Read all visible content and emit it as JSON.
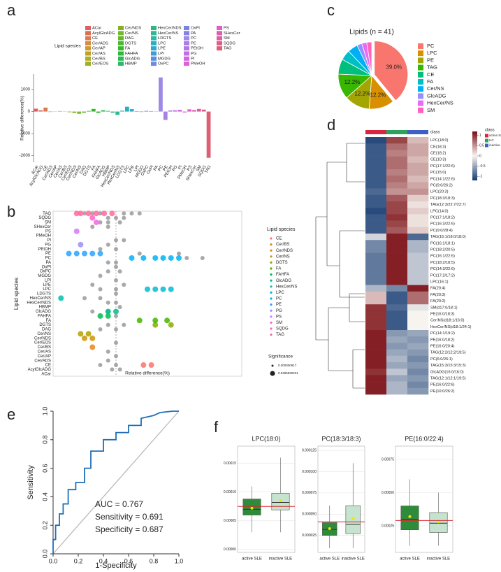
{
  "chart_data": [
    {
      "label": "a",
      "type": "bar",
      "ylabel": "Relative difference(%)",
      "legend_title": "Lipid species",
      "categories": [
        "ACar",
        "AcylGlcADG",
        "CE",
        "Cer/ADS",
        "Cer/AP",
        "Cer/AS",
        "Cer/BS",
        "Cer/EOS",
        "Cer/NDS",
        "Cer/NS",
        "DAG",
        "DGTS",
        "FA",
        "FAHFA",
        "GlcADG",
        "HBMP",
        "HexCer/NDS",
        "HexCer/NS",
        "LDGTS",
        "LPC",
        "LPE",
        "LPI",
        "MGDG",
        "OxPC",
        "OxPI",
        "PA",
        "PC",
        "PE",
        "PEtOH",
        "PG",
        "PI",
        "PMeOH",
        "PS",
        "SHexCer",
        "SM",
        "SQDG",
        "TAG"
      ],
      "values": [
        130,
        60,
        180,
        -20,
        -10,
        20,
        10,
        -30,
        -60,
        -100,
        -50,
        30,
        120,
        -60,
        60,
        30,
        -50,
        -150,
        40,
        220,
        110,
        20,
        -20,
        30,
        20,
        10,
        1550,
        -380,
        50,
        60,
        80,
        -40,
        100,
        70,
        120,
        90,
        -2100
      ],
      "colors": [
        "hsl(0,65%,62%)",
        "hsl(10,65%,60%)",
        "hsl(19,65%,58%)",
        "hsl(29,65%,55%)",
        "hsl(39,65%,50%)",
        "hsl(49,65%,45%)",
        "hsl(58,65%,42%)",
        "hsl(68,65%,42%)",
        "hsl(78,65%,42%)",
        "hsl(88,60%,45%)",
        "hsl(97,60%,45%)",
        "hsl(107,60%,45%)",
        "hsl(117,60%,45%)",
        "hsl(126,60%,45%)",
        "hsl(136,60%,45%)",
        "hsl(146,60%,45%)",
        "hsl(156,60%,45%)",
        "hsl(165,60%,45%)",
        "hsl(175,60%,45%)",
        "hsl(185,65%,45%)",
        "hsl(195,65%,50%)",
        "hsl(204,65%,55%)",
        "hsl(214,65%,60%)",
        "hsl(224,65%,65%)",
        "hsl(234,65%,68%)",
        "hsl(243,65%,70%)",
        "hsl(253,65%,72%)",
        "hsl(263,65%,70%)",
        "hsl(272,65%,68%)",
        "hsl(282,65%,66%)",
        "hsl(292,65%,64%)",
        "hsl(302,65%,62%)",
        "hsl(311,65%,62%)",
        "hsl(321,65%,62%)",
        "hsl(331,65%,62%)",
        "hsl(341,65%,62%)",
        "hsl(350,65%,62%)"
      ],
      "ylim": [
        -2300,
        1700
      ],
      "yticks": [
        -2000,
        -1000,
        0,
        1000
      ]
    },
    {
      "label": "b",
      "type": "strip",
      "ylabel": "Lipid species",
      "xlabel": "Relative difference(%)",
      "legend_title": "Lipid species",
      "size_title": "Significance",
      "size_labels": [
        "0.000000917",
        "0.0495820231"
      ],
      "categories": [
        "TAG",
        "SQDG",
        "SM",
        "SHexCer",
        "PS",
        "PMeOH",
        "PI",
        "PG",
        "PEtOH",
        "PE",
        "PC",
        "PA",
        "OxPI",
        "OxPC",
        "MGDG",
        "LPI",
        "LPE",
        "LPC",
        "LDGTS",
        "HexCer/NS",
        "HexCer/NDS",
        "HBMP",
        "GlcADG",
        "FAHFA",
        "FA",
        "DGTS",
        "DAG",
        "Cer/NS",
        "Cer/NDS",
        "Cer/EOS",
        "Cer/BS",
        "Cer/AS",
        "Cer/AP",
        "Cer/ADS",
        "CE",
        "AcylGlcADG",
        "ACar"
      ],
      "xlim": [
        -0.8,
        1.6
      ],
      "refline": 0,
      "series": [
        {
          "color": "#9a9a9a",
          "x": [
            -0.4,
            -0.3,
            -0.2,
            0.1,
            0.2,
            0.3,
            -0.1,
            0,
            0.1,
            -0.2,
            -0.1,
            0.05,
            -0.3,
            -0.1,
            0,
            0.1,
            -0.1,
            -0.2,
            0,
            0.3,
            0.8,
            0.9,
            1.1,
            -0.1,
            0,
            0,
            -0.1,
            0.05,
            -0.2,
            0,
            -0.3,
            0.1,
            -0.2,
            0,
            0,
            -0.4,
            -0.2,
            -0.1,
            0,
            0.05,
            -0.3,
            -0.1,
            0,
            -0.1,
            0.1,
            -0.2,
            0,
            0,
            -0.1,
            0,
            -0.1,
            -0.2,
            0,
            -0.05,
            0.05
          ],
          "y": [
            0,
            0,
            0,
            0,
            0,
            0,
            1,
            1,
            1,
            2,
            2,
            2,
            3,
            3,
            6,
            6,
            7,
            8,
            8,
            9,
            9,
            10,
            10,
            11,
            11,
            12,
            13,
            13,
            14,
            15,
            16,
            16,
            17,
            17,
            18,
            19,
            19,
            20,
            20,
            21,
            22,
            22,
            23,
            25,
            25,
            26,
            26,
            29,
            31,
            32,
            33,
            34,
            34,
            35,
            35
          ]
        },
        {
          "name": "CE",
          "color": "#F8766D",
          "x": [
            0.35,
            0.45
          ],
          "y": [
            34,
            34
          ]
        },
        {
          "name": "Cer/BS",
          "color": "#E7851E",
          "x": [
            -0.3
          ],
          "y": [
            30
          ]
        },
        {
          "name": "Cer/NDS",
          "color": "#D09400",
          "x": [
            -0.4,
            -0.3
          ],
          "y": [
            28,
            28
          ]
        },
        {
          "name": "Cer/NS",
          "color": "#B2A100",
          "x": [
            -0.45,
            -0.35
          ],
          "y": [
            27,
            27
          ]
        },
        {
          "name": "DGTS",
          "color": "#89AC00",
          "x": [
            0.5,
            0.7
          ],
          "y": [
            25,
            25
          ]
        },
        {
          "name": "FA",
          "color": "#45B500",
          "x": [
            0.3,
            0.5,
            0.65
          ],
          "y": [
            24,
            24,
            24
          ]
        },
        {
          "name": "FAHFA",
          "color": "#00BC51",
          "x": [
            -0.2,
            -0.1
          ],
          "y": [
            23,
            23
          ]
        },
        {
          "name": "GlcADG",
          "color": "#00C087",
          "x": [
            -0.1,
            0
          ],
          "y": [
            22,
            22
          ]
        },
        {
          "name": "HexCer/NS",
          "color": "#00C0B2",
          "x": [
            -0.7
          ],
          "y": [
            19
          ]
        },
        {
          "name": "LPC",
          "color": "#00BCD6",
          "x": [
            0.4,
            0.5,
            0.6,
            0.7
          ],
          "y": [
            17,
            17,
            17,
            17
          ]
        },
        {
          "name": "PC",
          "color": "#00B3F2",
          "x": [
            0.2,
            0.35,
            0.5,
            0.6,
            0.7,
            0.8
          ],
          "y": [
            10,
            10,
            10,
            10,
            10,
            10
          ]
        },
        {
          "name": "PE",
          "color": "#29A3FF",
          "x": [
            -0.6,
            -0.5,
            -0.4,
            -0.3,
            -0.2
          ],
          "y": [
            9,
            9,
            9,
            9,
            9
          ]
        },
        {
          "name": "PG",
          "color": "#9C8DFF",
          "x": [
            -0.45
          ],
          "y": [
            7
          ]
        },
        {
          "name": "PS",
          "color": "#D277FF",
          "x": [
            -0.5
          ],
          "y": [
            4
          ]
        },
        {
          "name": "SM",
          "color": "#F166E8",
          "x": [
            -0.25
          ],
          "y": [
            2
          ]
        },
        {
          "name": "SQDG",
          "color": "#FF61C7",
          "x": [
            -0.3
          ],
          "y": [
            1
          ]
        },
        {
          "name": "TAG",
          "color": "#FF689E",
          "x": [
            -0.5,
            -0.45,
            -0.35,
            -0.25,
            -0.15,
            -0.05
          ],
          "y": [
            0,
            0,
            0,
            0,
            0,
            0
          ]
        }
      ]
    },
    {
      "label": "c",
      "type": "pie",
      "title": "Lipids (n = 41)",
      "categories": [
        "PC",
        "LPC",
        "PE",
        "TAG",
        "CE",
        "FA",
        "Cer/NS",
        "GlcADG",
        "HexCer/NS",
        "SM"
      ],
      "values": [
        39.0,
        12.2,
        12.2,
        12.2,
        7.3,
        4.9,
        4.9,
        2.4,
        2.4,
        2.4
      ],
      "value_labels": [
        "39.0%",
        "12.2%",
        "12.2%",
        "12.2%",
        null,
        null,
        null,
        null,
        null,
        null
      ],
      "colors": [
        "#F8766D",
        "#D89000",
        "#A3A500",
        "#39B600",
        "#00BF7D",
        "#00BFC4",
        "#00B0F6",
        "#9590FF",
        "#E76BF3",
        "#FF62BC"
      ]
    },
    {
      "label": "d",
      "type": "heatmap",
      "annotation_label": "class",
      "legend_title": "class",
      "columns": [
        "active SLE",
        "HC",
        "inactive SLE"
      ],
      "column_colors": [
        "#d7263d",
        "#2ca25f",
        "#3f5fc4"
      ],
      "rows": [
        "LPC(18:0)",
        "CE(18:3)",
        "CE(18:2)",
        "CE(10:3)",
        "PC(17:1/22:6)",
        "PC(15:0)",
        "PC(14:1/22:6)",
        "PC(9:0/26:2)",
        "LPC(20:3)",
        "PC(18:3/18:3)",
        "TAG(12:3/22:7/22:7)",
        "LPC(14:0)",
        "PC(17:1/18:2)",
        "PC(16:3/22:6)",
        "PC(9:0/28:4)",
        "TAG(16:1/18:0/18:0)",
        "PC(16:1/18:1)",
        "PC(18:2/20:5)",
        "PC(16:1/22:6)",
        "PC(18:2/18:5)",
        "PC(14:3/22:6)",
        "PC(17:2/17:2)",
        "LPC(16:1)",
        "FA(20:4)",
        "FA(20:3)",
        "FA(20:2)",
        "SM(d17:0/18:1)",
        "PE(16:0/18:3)",
        "Cer/NS(d18:1/16:0)",
        "HexCer/NS(d18:1/24:1)",
        "PC(14:1/19:2)",
        "PE(16:0/18:2)",
        "PE(16:0/20:4)",
        "TAG(12:2/12:2/19:5)",
        "PC(6:0/26:1)",
        "TAG(15:3/15:3/15:3)",
        "GlcADG(16:0/16:0)",
        "TAG(12:1/12:1/19:5)",
        "PE(16:0/22:6)",
        "PE(10:0/26:2)"
      ],
      "values": [
        [
          -1.1,
          0.9,
          0.3
        ],
        [
          -1,
          0.7,
          0.4
        ],
        [
          -1,
          0.6,
          0.4
        ],
        [
          -1,
          0.7,
          0.3
        ],
        [
          -1,
          0.7,
          0.4
        ],
        [
          -1,
          0.6,
          0.4
        ],
        [
          -1,
          0.7,
          0.3
        ],
        [
          -1,
          0.6,
          0.4
        ],
        [
          -0.9,
          0.5,
          0.5
        ],
        [
          -1,
          0.8,
          0.2
        ],
        [
          -1,
          0.9,
          0.1
        ],
        [
          -1.1,
          0.9,
          0.2
        ],
        [
          -1,
          1,
          0.1
        ],
        [
          -1,
          0.9,
          0.1
        ],
        [
          -1,
          0.8,
          0.2
        ],
        [
          -0.2,
          1.1,
          -0.9
        ],
        [
          -0.7,
          1.1,
          -0.4
        ],
        [
          -0.7,
          1.1,
          -0.4
        ],
        [
          -0.8,
          1.1,
          -0.3
        ],
        [
          -0.8,
          1.1,
          -0.3
        ],
        [
          -0.8,
          1.1,
          -0.3
        ],
        [
          -0.8,
          1.1,
          -0.3
        ],
        [
          -0.8,
          1.1,
          -0.3
        ],
        [
          -0.4,
          -0.7,
          1.1
        ],
        [
          0.3,
          -1,
          0.7
        ],
        [
          0.3,
          -1,
          0.7
        ],
        [
          1,
          -0.9,
          -0.1
        ],
        [
          1,
          -1,
          0
        ],
        [
          1,
          -1,
          0
        ],
        [
          1,
          -1,
          0
        ],
        [
          1.1,
          -0.6,
          -0.5
        ],
        [
          1.1,
          -0.5,
          -0.6
        ],
        [
          1.1,
          -0.6,
          -0.5
        ],
        [
          1.1,
          -0.5,
          -0.6
        ],
        [
          1.1,
          -0.4,
          -0.7
        ],
        [
          1.1,
          -0.5,
          -0.6
        ],
        [
          1,
          -0.3,
          -0.7
        ],
        [
          1.1,
          -0.5,
          -0.6
        ],
        [
          1.1,
          -0.4,
          -0.7
        ],
        [
          1.1,
          -0.4,
          -0.6
        ]
      ],
      "clim": [
        -1.2,
        1.2
      ],
      "cticks": [
        1,
        0.5,
        0,
        -0.5,
        -1
      ],
      "colors": [
        "#153b73",
        "#f7f4f0",
        "#7a0c12"
      ]
    },
    {
      "label": "e",
      "type": "line",
      "xlabel": "1-Specificity",
      "ylabel": "Sensitivity",
      "color": "#1f6fb8",
      "annotations": [
        "AUC = 0.767",
        "Sensitivity = 0.691",
        "Specificity = 0.687"
      ],
      "x": [
        0,
        0,
        0.02,
        0.02,
        0.05,
        0.05,
        0.08,
        0.08,
        0.12,
        0.12,
        0.18,
        0.18,
        0.25,
        0.25,
        0.3,
        0.3,
        0.4,
        0.4,
        0.5,
        0.5,
        0.6,
        0.6,
        0.7,
        0.7,
        0.8,
        0.85,
        0.95,
        1
      ],
      "y": [
        0,
        0.1,
        0.1,
        0.2,
        0.2,
        0.28,
        0.28,
        0.35,
        0.35,
        0.45,
        0.45,
        0.5,
        0.5,
        0.6,
        0.6,
        0.72,
        0.72,
        0.8,
        0.8,
        0.85,
        0.85,
        0.9,
        0.9,
        0.95,
        0.97,
        0.99,
        1,
        1
      ],
      "xlim": [
        0,
        1
      ],
      "ylim": [
        0,
        1
      ],
      "xticks": [
        {
          "value": 0,
          "label": "0.0"
        },
        {
          "value": 0.2,
          "label": "0.2"
        },
        {
          "value": 0.4,
          "label": "0.4"
        },
        {
          "value": 0.6,
          "label": "0.6"
        },
        {
          "value": 0.8,
          "label": "0.8"
        },
        {
          "value": 1,
          "label": "1.0"
        }
      ],
      "yticks": [
        {
          "value": 0,
          "label": "0.0"
        },
        {
          "value": 0.2,
          "label": "0.2"
        },
        {
          "value": 0.4,
          "label": "0.4"
        },
        {
          "value": 0.6,
          "label": "0.6"
        },
        {
          "value": 0.8,
          "label": "0.8"
        },
        {
          "value": 1,
          "label": "1.0"
        }
      ]
    },
    {
      "label": "f",
      "type": "box",
      "title": "LPC(18:0)",
      "categories": [
        "active SLE",
        "inactive SLE"
      ],
      "colors": [
        "#2e8b3a",
        "#c5e3cf"
      ],
      "hline": 7.5e-05,
      "hline_color": "#d62728",
      "mean_color": "#f2e30c",
      "boxes": [
        {
          "min": 3e-05,
          "q1": 6e-05,
          "median": 7e-05,
          "q3": 8.8e-05,
          "max": 0.00011,
          "mean": 7.2e-05
        },
        {
          "min": 3e-05,
          "q1": 6.9e-05,
          "median": 8.2e-05,
          "q3": 9.8e-05,
          "max": 0.00016,
          "mean": 8.5e-05
        }
      ],
      "ylim": [
        -5e-06,
        0.00018
      ],
      "yticks": [
        {
          "value": 0,
          "label": "0.00000"
        },
        {
          "value": 5e-05,
          "label": "0.00005"
        },
        {
          "value": 0.0001,
          "label": "0.00010"
        },
        {
          "value": 0.00015,
          "label": "0.00015"
        }
      ]
    },
    {
      "type": "box",
      "title": "PC(18:3/18:3)",
      "categories": [
        "active SLE",
        "inactive SLE"
      ],
      "colors": [
        "#2e8b3a",
        "#c5e3cf"
      ],
      "hline": 4.1e-05,
      "hline_color": "#d62728",
      "mean_color": "#f2e30c",
      "boxes": [
        {
          "min": 1e-05,
          "q1": 2.5e-05,
          "median": 3.2e-05,
          "q3": 4e-05,
          "max": 6e-05,
          "mean": 3.3e-05
        },
        {
          "min": 1e-05,
          "q1": 2.7e-05,
          "median": 3.8e-05,
          "q3": 6e-05,
          "max": 0.00011,
          "mean": 4.5e-05
        }
      ],
      "ylim": [
        5e-06,
        0.00013
      ],
      "yticks": [
        {
          "value": 2.5e-05,
          "label": "0.000025"
        },
        {
          "value": 5e-05,
          "label": "0.000050"
        },
        {
          "value": 7.5e-05,
          "label": "0.000075"
        },
        {
          "value": 0.0001,
          "label": "0.000100"
        },
        {
          "value": 0.000125,
          "label": "0.000125"
        }
      ]
    },
    {
      "type": "box",
      "title": "PE(16:0/22:4)",
      "categories": [
        "active SLE",
        "inactive SLE"
      ],
      "colors": [
        "#2e8b3a",
        "#c5e3cf"
      ],
      "hline": 0.00029,
      "hline_color": "#d62728",
      "mean_color": "#f2e30c",
      "boxes": [
        {
          "min": 0.0001,
          "q1": 0.00022,
          "median": 0.0003,
          "q3": 0.0004,
          "max": 0.0006,
          "mean": 0.00032
        },
        {
          "min": 0.0001,
          "q1": 0.0002,
          "median": 0.00027,
          "q3": 0.00035,
          "max": 0.0005,
          "mean": 0.00028
        }
      ],
      "ylim": [
        5e-05,
        0.00085
      ],
      "yticks": [
        {
          "value": 0.00025,
          "label": "0.00025"
        },
        {
          "value": 0.0005,
          "label": "0.00050"
        },
        {
          "value": 0.00075,
          "label": "0.00075"
        }
      ]
    }
  ]
}
